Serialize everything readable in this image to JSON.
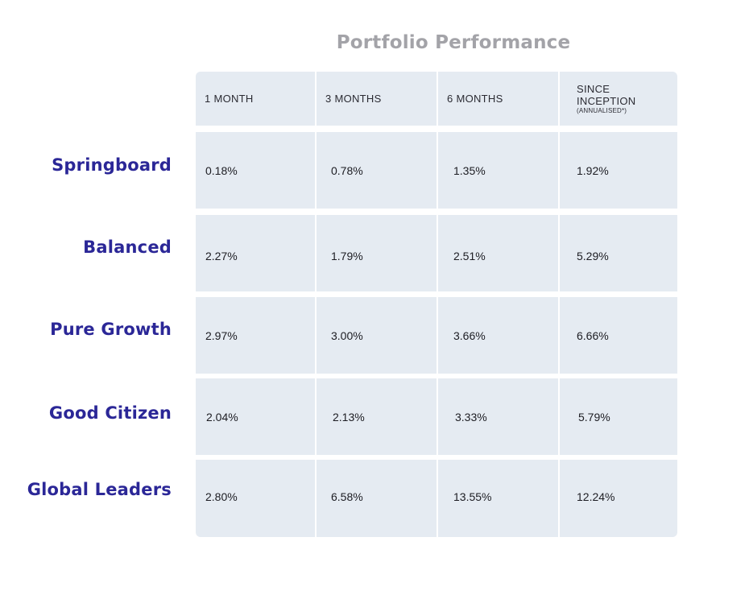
{
  "chart_data": {
    "type": "table",
    "title": "Portfolio Performance",
    "columns": [
      {
        "label": "1 MONTH",
        "sublabel": ""
      },
      {
        "label": "3 MONTHS",
        "sublabel": ""
      },
      {
        "label": "6 MONTHS",
        "sublabel": ""
      },
      {
        "label": "SINCE INCEPTION",
        "label_line1": "SINCE",
        "label_line2": "INCEPTION",
        "sublabel": "(ANNUALISED*)"
      }
    ],
    "rows": [
      {
        "name": "Springboard",
        "values": [
          "0.18%",
          "0.78%",
          "1.35%",
          "1.92%"
        ]
      },
      {
        "name": "Balanced",
        "values": [
          "2.27%",
          "1.79%",
          "2.51%",
          "5.29%"
        ]
      },
      {
        "name": "Pure Growth",
        "values": [
          "2.97%",
          "3.00%",
          "3.66%",
          "6.66%"
        ]
      },
      {
        "name": "Good Citizen",
        "values": [
          "2.04%",
          "2.13%",
          "3.33%",
          "5.79%"
        ]
      },
      {
        "name": "Global Leaders",
        "values": [
          "2.80%",
          "6.58%",
          "13.55%",
          "12.24%"
        ]
      }
    ]
  },
  "colors": {
    "cell_background": "#e5ebf2",
    "row_label": "#2b2797",
    "title": "#a3a3a8",
    "text": "#1c1c22"
  }
}
